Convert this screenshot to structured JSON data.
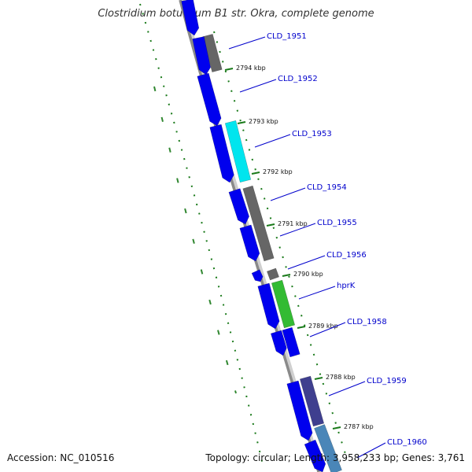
{
  "title": "Clostridium botulinum B1 str. Okra, complete genome",
  "footer": {
    "accession": "Accession: NC_010516",
    "topology": "Topology: circular; Length: 3,958,233 bp; Genes: 3,761"
  },
  "colors": {
    "forward_strand": "#0000ee",
    "other": "#666666",
    "cyan_feature": "#00e5ee",
    "green_feature": "#33bb33",
    "purple_feature": "#3f3f8f",
    "steelblue_feature": "#4a86b8",
    "label": "#0000cc",
    "tick": "#1a7a1a"
  },
  "kbp_ticks": [
    "2794 kbp",
    "2793 kbp",
    "2792 kbp",
    "2791 kbp",
    "2790 kbp",
    "2789 kbp",
    "2788 kbp",
    "2787 kbp"
  ],
  "gene_labels": [
    "CLD_1951",
    "CLD_1952",
    "CLD_1953",
    "CLD_1954",
    "CLD_1955",
    "CLD_1956",
    "hprK",
    "CLD_1958",
    "CLD_1959",
    "CLD_1960"
  ]
}
